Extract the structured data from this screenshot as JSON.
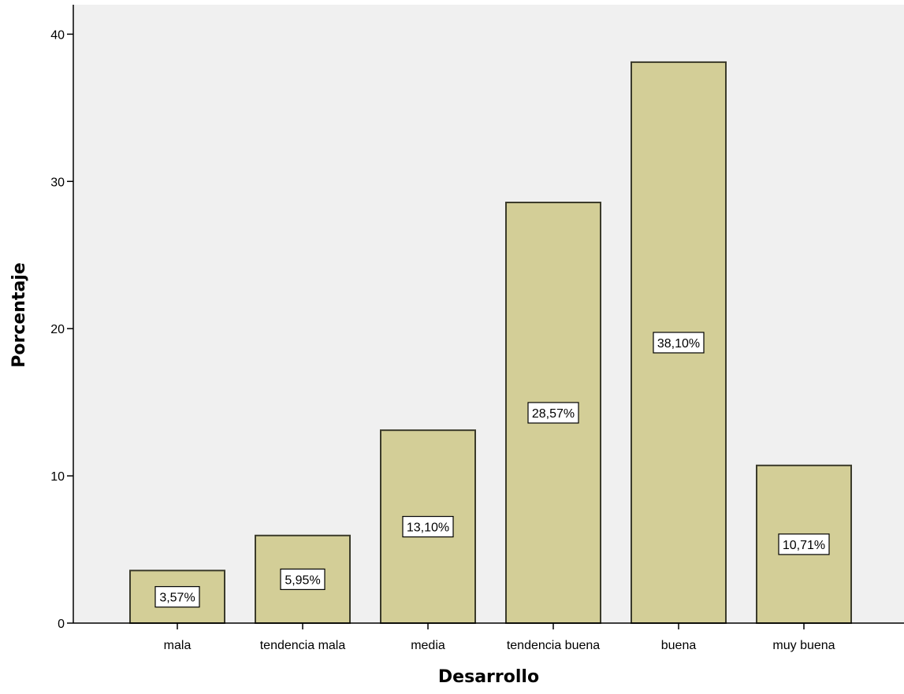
{
  "chart_data": {
    "type": "bar",
    "categories": [
      "mala",
      "tendencia mala",
      "media",
      "tendencia buena",
      "buena",
      "muy buena"
    ],
    "values": [
      3.57,
      5.95,
      13.1,
      28.57,
      38.1,
      10.71
    ],
    "data_labels": [
      "3,57%",
      "5,95%",
      "13,10%",
      "28,57%",
      "38,10%",
      "10,71%"
    ],
    "yticks": [
      0,
      10,
      20,
      30,
      40
    ],
    "ytick_labels": [
      "0",
      "10",
      "20",
      "30",
      "40"
    ],
    "xlabel": "Desarrollo",
    "ylabel": "Porcentaje",
    "ylim": [
      0,
      42
    ],
    "grid": false,
    "colors": {
      "plot_background": "#f0f0f0",
      "bar_fill": "#d3ce97",
      "bar_stroke": "#3b3b2b",
      "axis": "#000000",
      "label_box": "#ffffff"
    }
  }
}
